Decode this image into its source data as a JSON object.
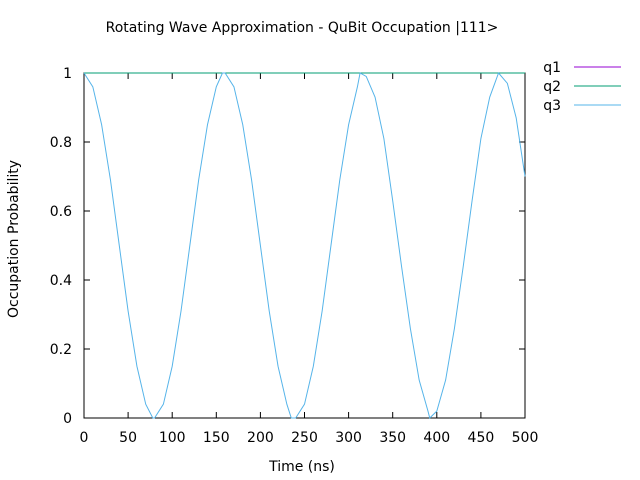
{
  "chart_data": {
    "type": "line",
    "title": "Rotating Wave Approximation - QuBit Occupation |111>",
    "xlabel": "Time (ns)",
    "ylabel": "Occupation Probability",
    "xlim": [
      0,
      500
    ],
    "ylim": [
      0,
      1.0
    ],
    "xticks": [
      0,
      50,
      100,
      150,
      200,
      250,
      300,
      350,
      400,
      450,
      500
    ],
    "xtick_labels": [
      "0",
      "50",
      "100",
      "150",
      "200",
      "250",
      "300",
      "350",
      "400",
      "450",
      "500"
    ],
    "yticks": [
      0,
      0.2,
      0.4,
      0.6,
      0.8,
      1
    ],
    "ytick_labels": [
      "0",
      "0.2",
      "0.4",
      "0.6",
      "0.8",
      "1"
    ],
    "grid": false,
    "legend_position": "outside-top-right",
    "series": [
      {
        "name": "q1",
        "color": "#9400d3",
        "x": [
          0,
          500
        ],
        "y": [
          1,
          1
        ]
      },
      {
        "name": "q2",
        "color": "#009e73",
        "x": [
          0,
          500
        ],
        "y": [
          1,
          1
        ]
      },
      {
        "name": "q3",
        "color": "#56b4e9",
        "x": [
          0,
          10,
          20,
          30,
          40,
          50,
          60,
          70,
          78,
          80,
          90,
          100,
          110,
          120,
          130,
          140,
          150,
          157,
          160,
          170,
          180,
          190,
          200,
          210,
          220,
          230,
          235,
          240,
          250,
          260,
          270,
          280,
          290,
          300,
          310,
          313,
          320,
          330,
          340,
          350,
          360,
          370,
          380,
          390,
          392,
          400,
          410,
          420,
          430,
          440,
          450,
          460,
          470,
          480,
          490,
          500
        ],
        "y": [
          1,
          0.96,
          0.85,
          0.69,
          0.5,
          0.31,
          0.15,
          0.04,
          0,
          0,
          0.04,
          0.15,
          0.31,
          0.5,
          0.69,
          0.85,
          0.96,
          1,
          1,
          0.96,
          0.85,
          0.69,
          0.5,
          0.31,
          0.15,
          0.04,
          0,
          0,
          0.04,
          0.15,
          0.31,
          0.5,
          0.69,
          0.85,
          0.96,
          1,
          0.99,
          0.93,
          0.81,
          0.63,
          0.44,
          0.26,
          0.11,
          0.02,
          0,
          0.02,
          0.11,
          0.26,
          0.44,
          0.63,
          0.81,
          0.93,
          1,
          0.97,
          0.87,
          0.7
        ]
      }
    ]
  }
}
